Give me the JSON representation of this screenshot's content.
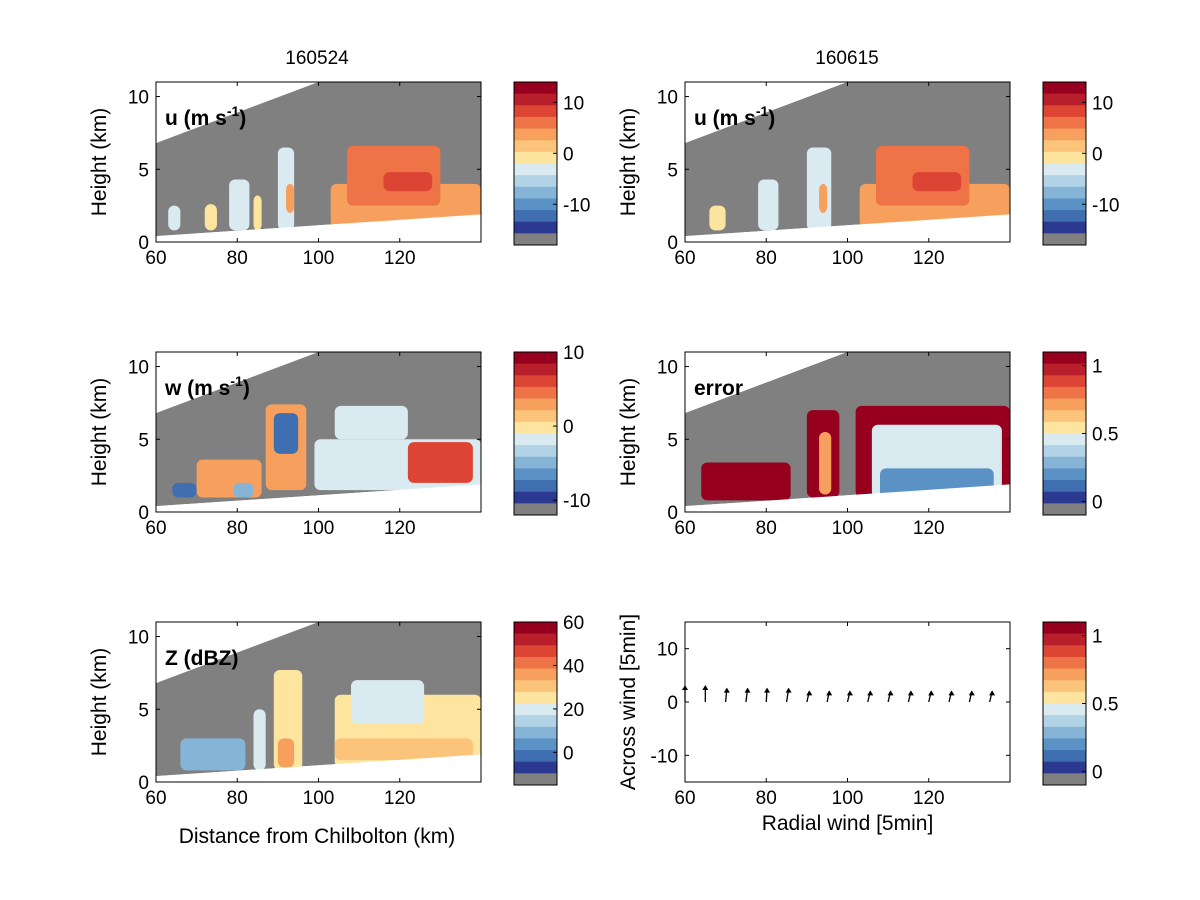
{
  "figure": {
    "column_titles": [
      "160524",
      "160615"
    ],
    "xlabel_left": "Distance from Chilbolton (km)",
    "ylabel": "Height (km)"
  },
  "colors": {
    "gray_mask": "#808080",
    "palette": [
      "#2b3990",
      "#3f6fb0",
      "#5b92c5",
      "#86b4d6",
      "#b2d3e6",
      "#d9ebf1",
      "#fde5a0",
      "#fbc47a",
      "#f7a05e",
      "#ee7346",
      "#dc4434",
      "#b81f2b",
      "#96001e"
    ]
  },
  "chart_data": [
    {
      "type": "heatmap",
      "panel": "u",
      "label_main": "u (m s",
      "label_sup": "-1",
      "label_end": ")",
      "xlim": [
        60,
        140
      ],
      "ylim": [
        0,
        11
      ],
      "xticks": [
        "60",
        "80",
        "100",
        "120"
      ],
      "yticks": [
        "0",
        "5",
        "10"
      ],
      "colorbar_ticks": [
        "10",
        "0",
        "-10"
      ],
      "colorbar_range": [
        -18,
        14
      ],
      "blocks": [
        {
          "x0": 63,
          "x1": 66,
          "y0": 0.8,
          "y1": 2.5,
          "v": -4
        },
        {
          "x0": 72,
          "x1": 75,
          "y0": 0.8,
          "y1": 2.6,
          "v": -3
        },
        {
          "x0": 78,
          "x1": 83,
          "y0": 0.8,
          "y1": 4.3,
          "v": -4
        },
        {
          "x0": 84,
          "x1": 86,
          "y0": 0.8,
          "y1": 3.2,
          "v": -2
        },
        {
          "x0": 90,
          "x1": 94,
          "y0": 0.8,
          "y1": 6.5,
          "v": -5
        },
        {
          "x0": 92,
          "x1": 94,
          "y0": 2.0,
          "y1": 4.0,
          "v": 2
        },
        {
          "x0": 103,
          "x1": 140,
          "y0": 1.0,
          "y1": 4.0,
          "v": 3
        },
        {
          "x0": 107,
          "x1": 130,
          "y0": 2.5,
          "y1": 6.6,
          "v": 5
        },
        {
          "x0": 116,
          "x1": 128,
          "y0": 3.5,
          "y1": 4.8,
          "v": 8
        }
      ]
    },
    {
      "type": "heatmap",
      "panel": "w",
      "label_main": "w (m s",
      "label_sup": "-1",
      "label_end": ")",
      "xlim": [
        60,
        140
      ],
      "ylim": [
        0,
        11
      ],
      "xticks": [
        "60",
        "80",
        "100",
        "120"
      ],
      "yticks": [
        "0",
        "5",
        "10"
      ],
      "colorbar_ticks": [
        "10",
        "0",
        "-10"
      ],
      "colorbar_range": [
        -12,
        10
      ],
      "blocks": [
        {
          "x0": 64,
          "x1": 70,
          "y0": 1.0,
          "y1": 2.0,
          "v": -9
        },
        {
          "x0": 70,
          "x1": 86,
          "y0": 1.0,
          "y1": 3.6,
          "v": 2
        },
        {
          "x0": 79,
          "x1": 84,
          "y0": 1.0,
          "y1": 2.0,
          "v": -6
        },
        {
          "x0": 87,
          "x1": 97,
          "y0": 1.5,
          "y1": 7.4,
          "v": 3
        },
        {
          "x0": 89,
          "x1": 95,
          "y0": 4.0,
          "y1": 6.8,
          "v": -10
        },
        {
          "x0": 99,
          "x1": 140,
          "y0": 1.5,
          "y1": 5.0,
          "v": -2
        },
        {
          "x0": 104,
          "x1": 122,
          "y0": 5.0,
          "y1": 7.3,
          "v": -3
        },
        {
          "x0": 122,
          "x1": 138,
          "y0": 2.0,
          "y1": 4.8,
          "v": 5
        }
      ]
    },
    {
      "type": "heatmap",
      "panel": "Z",
      "label_main": "Z (dBZ)",
      "label_sup": "",
      "label_end": "",
      "xlim": [
        60,
        140
      ],
      "ylim": [
        0,
        11
      ],
      "xticks": [
        "60",
        "80",
        "100",
        "120"
      ],
      "yticks": [
        "0",
        "5",
        "10"
      ],
      "colorbar_ticks": [
        "60",
        "40",
        "20",
        "0"
      ],
      "colorbar_range": [
        -15,
        60
      ],
      "blocks": [
        {
          "x0": 66,
          "x1": 82,
          "y0": 0.8,
          "y1": 3.0,
          "v": 5
        },
        {
          "x0": 84,
          "x1": 87,
          "y0": 0.8,
          "y1": 5.0,
          "v": 15
        },
        {
          "x0": 89,
          "x1": 96,
          "y0": 0.8,
          "y1": 7.7,
          "v": 20
        },
        {
          "x0": 90,
          "x1": 94,
          "y0": 1.0,
          "y1": 3.0,
          "v": 32
        },
        {
          "x0": 104,
          "x1": 140,
          "y0": 1.0,
          "y1": 6.0,
          "v": 20
        },
        {
          "x0": 108,
          "x1": 126,
          "y0": 4.0,
          "y1": 7.0,
          "v": 15
        },
        {
          "x0": 104,
          "x1": 138,
          "y0": 1.5,
          "y1": 3.0,
          "v": 30
        }
      ]
    },
    {
      "type": "heatmap",
      "panel": "u",
      "label_main": "u (m s",
      "label_sup": "-1",
      "label_end": ")",
      "xlim": [
        60,
        140
      ],
      "ylim": [
        0,
        11
      ],
      "xticks": [
        "60",
        "80",
        "100",
        "120"
      ],
      "yticks": [
        "0",
        "5",
        "10"
      ],
      "colorbar_ticks": [
        "10",
        "0",
        "-10"
      ],
      "colorbar_range": [
        -18,
        14
      ],
      "blocks": [
        {
          "x0": 66,
          "x1": 70,
          "y0": 0.8,
          "y1": 2.5,
          "v": -3
        },
        {
          "x0": 78,
          "x1": 83,
          "y0": 0.8,
          "y1": 4.3,
          "v": -4
        },
        {
          "x0": 90,
          "x1": 96,
          "y0": 0.8,
          "y1": 6.5,
          "v": -4
        },
        {
          "x0": 93,
          "x1": 95,
          "y0": 2.0,
          "y1": 4.0,
          "v": 2
        },
        {
          "x0": 103,
          "x1": 140,
          "y0": 1.0,
          "y1": 4.0,
          "v": 3
        },
        {
          "x0": 107,
          "x1": 130,
          "y0": 2.5,
          "y1": 6.6,
          "v": 5
        },
        {
          "x0": 116,
          "x1": 128,
          "y0": 3.5,
          "y1": 4.8,
          "v": 8
        }
      ]
    },
    {
      "type": "heatmap",
      "panel": "error",
      "label_main": "error",
      "label_sup": "",
      "label_end": "",
      "xlim": [
        60,
        140
      ],
      "ylim": [
        0,
        11
      ],
      "xticks": [
        "60",
        "80",
        "100",
        "120"
      ],
      "yticks": [
        "0",
        "5",
        "10"
      ],
      "colorbar_ticks": [
        "1",
        "0.5",
        "0"
      ],
      "colorbar_range": [
        -0.1,
        1.1
      ],
      "blocks": [
        {
          "x0": 64,
          "x1": 86,
          "y0": 0.8,
          "y1": 3.4,
          "v": 1.05
        },
        {
          "x0": 90,
          "x1": 98,
          "y0": 1.0,
          "y1": 7.0,
          "v": 1.05
        },
        {
          "x0": 93,
          "x1": 96,
          "y0": 1.2,
          "y1": 5.5,
          "v": 0.7
        },
        {
          "x0": 102,
          "x1": 140,
          "y0": 1.0,
          "y1": 7.3,
          "v": 1.05
        },
        {
          "x0": 106,
          "x1": 138,
          "y0": 1.0,
          "y1": 6.0,
          "v": 0.4
        },
        {
          "x0": 108,
          "x1": 136,
          "y0": 1.0,
          "y1": 3.0,
          "v": 0.1
        }
      ]
    },
    {
      "type": "scatter",
      "panel": "quiver",
      "label_main": "",
      "label_sup": "",
      "label_end": "",
      "xlabel": "Radial wind [5min]",
      "ylabel": "Across wind [5min]",
      "xlim": [
        60,
        140
      ],
      "ylim": [
        -15,
        15
      ],
      "xticks": [
        "60",
        "80",
        "100",
        "120"
      ],
      "yticks": [
        "-10",
        "0",
        "10"
      ],
      "colorbar_ticks": [
        "1",
        "0.5",
        "0"
      ],
      "colorbar_range": [
        -0.1,
        1.1
      ],
      "arrows": [
        {
          "x": 60,
          "u": 0,
          "v": 3
        },
        {
          "x": 65,
          "u": 0,
          "v": 3
        },
        {
          "x": 70,
          "u": 0.3,
          "v": 2.5
        },
        {
          "x": 75,
          "u": 0.4,
          "v": 2.5
        },
        {
          "x": 80,
          "u": 0.2,
          "v": 2.5
        },
        {
          "x": 85,
          "u": 0.5,
          "v": 2.5
        },
        {
          "x": 90,
          "u": 0.6,
          "v": 2
        },
        {
          "x": 95,
          "u": 0.5,
          "v": 2
        },
        {
          "x": 100,
          "u": 0.6,
          "v": 2
        },
        {
          "x": 105,
          "u": 0.6,
          "v": 2
        },
        {
          "x": 110,
          "u": 0.6,
          "v": 2
        },
        {
          "x": 115,
          "u": 0.6,
          "v": 2
        },
        {
          "x": 120,
          "u": 0.6,
          "v": 2
        },
        {
          "x": 125,
          "u": 0.6,
          "v": 2
        },
        {
          "x": 130,
          "u": 0.6,
          "v": 2
        },
        {
          "x": 135,
          "u": 0.6,
          "v": 2
        }
      ]
    }
  ]
}
